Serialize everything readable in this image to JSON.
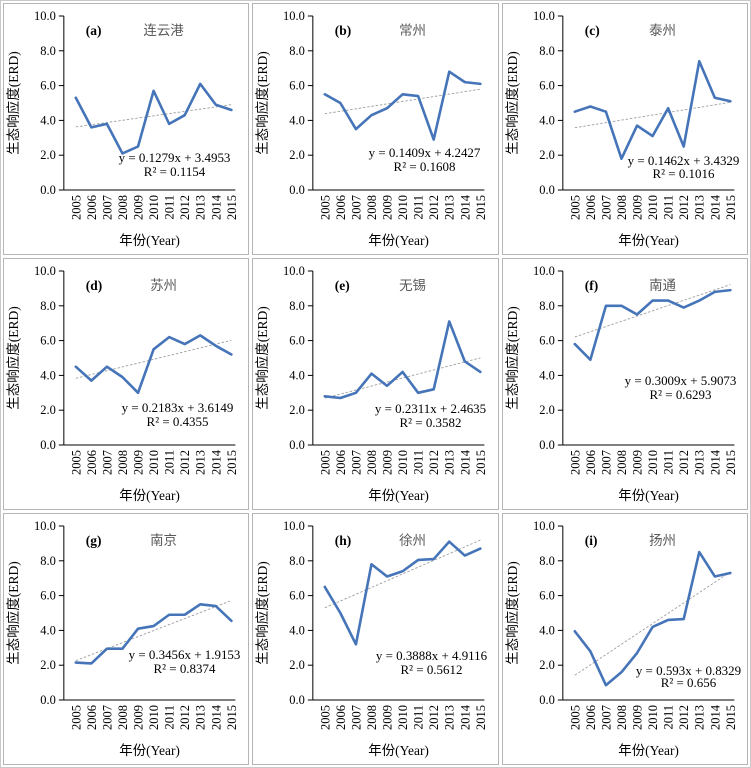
{
  "common": {
    "ylabel": "生态响应度(ERD)",
    "xlabel": "年份(Year)",
    "ylim": [
      0,
      10
    ],
    "y_ticks": [
      "0.0",
      "2.0",
      "4.0",
      "6.0",
      "8.0",
      "10.0"
    ],
    "y_tick_values": [
      0,
      2,
      4,
      6,
      8,
      10
    ],
    "years": [
      "2005",
      "2006",
      "2007",
      "2008",
      "2009",
      "2010",
      "2011",
      "2012",
      "2013",
      "2014",
      "2015"
    ],
    "grid": "off",
    "legend": "none"
  },
  "colors": {
    "series_line": "#4574B8",
    "trend_line": "#9e9e9e",
    "axis": "#000000",
    "city_title": "#595959",
    "equation_text": "#000000",
    "panel_border": "#b5b5b5"
  },
  "chart_data": [
    {
      "type": "line",
      "panel": "(a)",
      "title": "连云港",
      "values": [
        5.3,
        3.6,
        3.8,
        2.1,
        2.5,
        5.7,
        3.8,
        4.3,
        6.1,
        4.9,
        4.6
      ],
      "trend": {
        "slope": 0.1279,
        "intercept": 3.4953,
        "equation": "y = 0.1279x + 3.4953",
        "r2": "R² = 0.1154"
      }
    },
    {
      "type": "line",
      "panel": "(b)",
      "title": "常州",
      "values": [
        5.5,
        5.0,
        3.5,
        4.3,
        4.7,
        5.5,
        5.4,
        2.9,
        6.8,
        6.2,
        6.1
      ],
      "trend": {
        "slope": 0.1409,
        "intercept": 4.2427,
        "equation": "y = 0.1409x + 4.2427",
        "r2": "R² = 0.1608"
      }
    },
    {
      "type": "line",
      "panel": "(c)",
      "title": "泰州",
      "values": [
        4.5,
        4.8,
        4.5,
        1.8,
        3.7,
        3.1,
        4.7,
        2.5,
        7.4,
        5.3,
        5.1
      ],
      "trend": {
        "slope": 0.1462,
        "intercept": 3.4329,
        "equation": "y = 0.1462x + 3.4329",
        "r2": "R² = 0.1016"
      }
    },
    {
      "type": "line",
      "panel": "(d)",
      "title": "苏州",
      "values": [
        4.5,
        3.7,
        4.5,
        3.9,
        3.0,
        5.5,
        6.2,
        5.8,
        6.3,
        5.7,
        5.2
      ],
      "trend": {
        "slope": 0.2183,
        "intercept": 3.6149,
        "equation": "y = 0.2183x + 3.6149",
        "r2": "R² = 0.4355"
      }
    },
    {
      "type": "line",
      "panel": "(e)",
      "title": "无锡",
      "values": [
        2.8,
        2.7,
        3.0,
        4.1,
        3.4,
        4.2,
        3.0,
        3.2,
        7.1,
        4.8,
        4.2
      ],
      "trend": {
        "slope": 0.2311,
        "intercept": 2.4635,
        "equation": "y = 0.2311x + 2.4635",
        "r2": "R² = 0.3582"
      }
    },
    {
      "type": "line",
      "panel": "(f)",
      "title": "南通",
      "values": [
        5.8,
        4.9,
        8.0,
        8.0,
        7.5,
        8.3,
        8.3,
        7.9,
        8.3,
        8.8,
        8.9
      ],
      "trend": {
        "slope": 0.3009,
        "intercept": 5.9073,
        "equation": "y = 0.3009x + 5.9073",
        "r2": "R² = 0.6293"
      }
    },
    {
      "type": "line",
      "panel": "(g)",
      "title": "南京",
      "values": [
        2.15,
        2.1,
        2.95,
        2.95,
        4.1,
        4.25,
        4.9,
        4.9,
        5.5,
        5.4,
        4.55
      ],
      "trend": {
        "slope": 0.3456,
        "intercept": 1.9153,
        "equation": "y = 0.3456x + 1.9153",
        "r2": "R² = 0.8374"
      }
    },
    {
      "type": "line",
      "panel": "(h)",
      "title": "徐州",
      "values": [
        6.5,
        5.0,
        3.2,
        7.8,
        7.1,
        7.4,
        8.05,
        8.1,
        9.1,
        8.3,
        8.7
      ],
      "trend": {
        "slope": 0.3888,
        "intercept": 4.9116,
        "equation": "y = 0.3888x + 4.9116",
        "r2": "R² = 0.5612"
      }
    },
    {
      "type": "line",
      "panel": "(i)",
      "title": "扬州",
      "values": [
        3.95,
        2.8,
        0.85,
        1.6,
        2.7,
        4.2,
        4.6,
        4.65,
        8.5,
        7.1,
        7.3
      ],
      "trend": {
        "slope": 0.593,
        "intercept": 0.8329,
        "equation": "y = 0.593x + 0.8329",
        "r2": "R² = 0.656"
      }
    }
  ]
}
